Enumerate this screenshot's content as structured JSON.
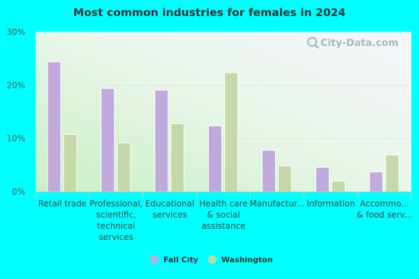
{
  "chart_data": {
    "type": "bar",
    "title": "Most common industries for females in 2024",
    "xlabel": "",
    "ylabel": "",
    "ylim": [
      0,
      30
    ],
    "yticks": [
      "0%",
      "10%",
      "20%",
      "30%"
    ],
    "categories": [
      [
        "Retail trade"
      ],
      [
        "Professional,",
        "scientific,",
        "technical",
        "services"
      ],
      [
        "Educational",
        "services"
      ],
      [
        "Health care",
        "& social",
        "assistance"
      ],
      [
        "Manufactur..."
      ],
      [
        "Information"
      ],
      [
        "Accommo...",
        "& food serv..."
      ]
    ],
    "series": [
      {
        "name": "Fall City",
        "color": "#c0a9dc",
        "values": [
          24.4,
          19.4,
          19.1,
          12.4,
          7.8,
          4.6,
          3.7
        ]
      },
      {
        "name": "Washington",
        "color": "#c5d9a8",
        "values": [
          10.8,
          9.2,
          12.8,
          22.4,
          4.9,
          2.0,
          6.9
        ]
      }
    ],
    "grid": true,
    "legend": "bottom"
  },
  "watermark": {
    "text": "City-Data.com",
    "icon": "magnifier-icon"
  }
}
